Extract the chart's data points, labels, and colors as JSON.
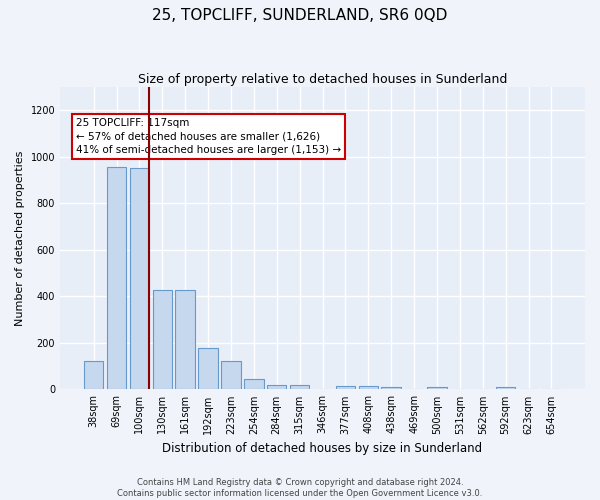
{
  "title": "25, TOPCLIFF, SUNDERLAND, SR6 0QD",
  "subtitle": "Size of property relative to detached houses in Sunderland",
  "xlabel": "Distribution of detached houses by size in Sunderland",
  "ylabel": "Number of detached properties",
  "categories": [
    "38sqm",
    "69sqm",
    "100sqm",
    "130sqm",
    "161sqm",
    "192sqm",
    "223sqm",
    "254sqm",
    "284sqm",
    "315sqm",
    "346sqm",
    "377sqm",
    "408sqm",
    "438sqm",
    "469sqm",
    "500sqm",
    "531sqm",
    "562sqm",
    "592sqm",
    "623sqm",
    "654sqm"
  ],
  "values": [
    120,
    955,
    950,
    425,
    425,
    180,
    120,
    45,
    20,
    20,
    0,
    15,
    15,
    10,
    0,
    10,
    0,
    0,
    10,
    0,
    0
  ],
  "bar_color": "#c5d8ee",
  "bar_edge_color": "#6699cc",
  "ylim": [
    0,
    1300
  ],
  "yticks": [
    0,
    200,
    400,
    600,
    800,
    1000,
    1200
  ],
  "property_line_idx": 2,
  "property_line_color": "#8b0000",
  "annotation_text": "25 TOPCLIFF: 117sqm\n← 57% of detached houses are smaller (1,626)\n41% of semi-detached houses are larger (1,153) →",
  "annotation_box_color": "#ffffff",
  "annotation_box_edge": "#cc0000",
  "footer_line1": "Contains HM Land Registry data © Crown copyright and database right 2024.",
  "footer_line2": "Contains public sector information licensed under the Open Government Licence v3.0.",
  "background_color": "#f0f4fa",
  "plot_bg_color": "#e8eef8",
  "grid_color": "#ffffff",
  "title_fontsize": 11,
  "subtitle_fontsize": 9,
  "ylabel_fontsize": 8,
  "xlabel_fontsize": 8.5,
  "tick_fontsize": 7,
  "annotation_fontsize": 7.5,
  "footer_fontsize": 6
}
